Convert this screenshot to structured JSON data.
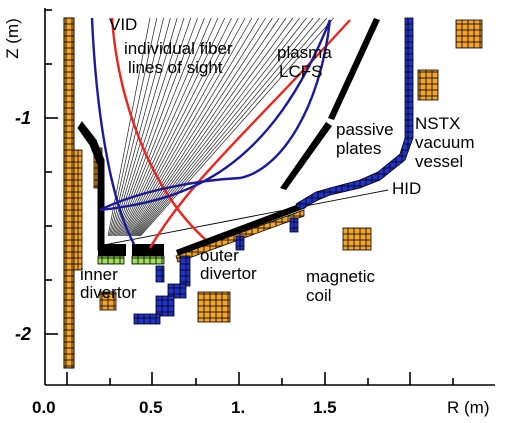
{
  "axes": {
    "y_label": "Z (m)",
    "x_label": "R (m)",
    "x_ticks": [
      "0.0",
      "0.5",
      "1.",
      "1.5"
    ],
    "y_ticks": [
      "-1",
      "-2"
    ]
  },
  "labels": {
    "vid": "VID",
    "fiber_line1": "individual fiber",
    "fiber_line2": "lines of sight",
    "plasma": "plasma",
    "lcfs": "LCFS",
    "passive1": "passive",
    "passive2": "plates",
    "nstx1": "NSTX",
    "nstx2": "vacuum",
    "nstx3": "vessel",
    "hid": "HID",
    "inner1": "inner",
    "inner2": "divertor",
    "outer1": "outer",
    "outer2": "divertor",
    "coil1": "magnetic",
    "coil2": "coil"
  },
  "colors": {
    "vessel": "#2233cc",
    "coil": "#f4a428",
    "lcfs_red": "#e8261e",
    "lcfs_blue": "#1b1b9a",
    "tile_green": "#9de05a",
    "black": "#000000"
  }
}
